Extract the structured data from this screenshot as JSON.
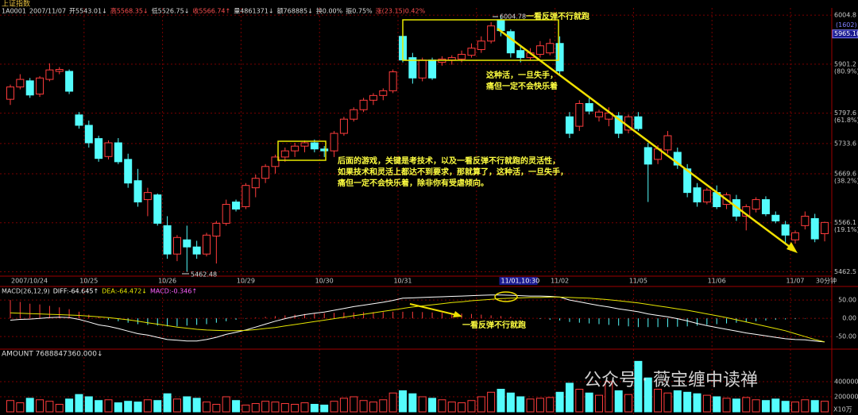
{
  "chart_data": {
    "type": "candlestick",
    "title": "上证指数",
    "header_items": [
      "1A0001",
      "2007/11/07",
      "开5543.01↓",
      "高5568.35↓",
      "低5526.75↓",
      "收5566.74↑",
      "量4861371↓",
      "额768885↓",
      "换0.00%",
      "振0.75%",
      "涨(23.15)0.42%"
    ],
    "candles": {
      "open": [
        5827,
        5853,
        5866,
        5838,
        5869,
        5886,
        5886,
        5794,
        5772,
        5744,
        5706,
        5735,
        5700,
        5655,
        5615,
        5625,
        5560,
        5500,
        5530,
        5515,
        5500,
        5538,
        5565,
        5610,
        5600,
        5640,
        5660,
        5685,
        5705,
        5718,
        5728,
        5735,
        5722,
        5718,
        5755,
        5785,
        5805,
        5825,
        5835,
        5845,
        5960,
        5915,
        5872,
        5910,
        5905,
        5910,
        5912,
        5920,
        5932,
        5950,
        5995,
        5970,
        5930,
        5915,
        5922,
        5925,
        5945,
        5790,
        5770,
        5818,
        5790,
        5785,
        5792,
        5762,
        5790,
        5725,
        5700,
        5720,
        5715,
        5680,
        5640,
        5610,
        5630,
        5605,
        5615,
        5580,
        5595,
        5615,
        5582,
        5562,
        5530,
        5560,
        5575,
        5543.01
      ],
      "high": [
        5858,
        5880,
        5872,
        5876,
        5903,
        5895,
        5890,
        5800,
        5782,
        5750,
        5740,
        5745,
        5712,
        5680,
        5640,
        5628,
        5580,
        5540,
        5560,
        5528,
        5545,
        5570,
        5615,
        5615,
        5650,
        5668,
        5690,
        5710,
        5725,
        5735,
        5740,
        5742,
        5728,
        5760,
        5790,
        5810,
        5830,
        5840,
        5850,
        5890,
        5968,
        5925,
        5915,
        5915,
        5918,
        5920,
        5930,
        5945,
        5960,
        5990,
        6004.78,
        5975,
        5940,
        5935,
        5950,
        5955,
        5960,
        5800,
        5825,
        5830,
        5805,
        5810,
        5800,
        5795,
        5800,
        5735,
        5730,
        5760,
        5725,
        5690,
        5650,
        5640,
        5645,
        5630,
        5625,
        5605,
        5620,
        5622,
        5590,
        5570,
        5550,
        5590,
        5585,
        5568.35
      ],
      "low": [
        5815,
        5848,
        5830,
        5832,
        5865,
        5880,
        5838,
        5765,
        5725,
        5695,
        5700,
        5690,
        5640,
        5600,
        5580,
        5560,
        5490,
        5485,
        5462.48,
        5490,
        5495,
        5480,
        5560,
        5590,
        5595,
        5620,
        5650,
        5670,
        5695,
        5705,
        5715,
        5715,
        5705,
        5705,
        5750,
        5780,
        5800,
        5815,
        5825,
        5840,
        5905,
        5860,
        5865,
        5868,
        5898,
        5900,
        5905,
        5915,
        5925,
        5945,
        5960,
        5915,
        5905,
        5910,
        5915,
        5920,
        5880,
        5745,
        5760,
        5795,
        5780,
        5770,
        5745,
        5755,
        5760,
        5610,
        5690,
        5712,
        5680,
        5620,
        5600,
        5605,
        5595,
        5595,
        5570,
        5550,
        5588,
        5580,
        5565,
        5520,
        5522,
        5552,
        5525,
        5526.75
      ],
      "close": [
        5853,
        5869,
        5836,
        5872,
        5889,
        5890,
        5844,
        5772,
        5735,
        5702,
        5735,
        5695,
        5650,
        5610,
        5630,
        5565,
        5500,
        5535,
        5515,
        5500,
        5540,
        5565,
        5605,
        5595,
        5645,
        5660,
        5685,
        5705,
        5718,
        5728,
        5735,
        5722,
        5718,
        5755,
        5785,
        5805,
        5825,
        5835,
        5845,
        5885,
        5910,
        5872,
        5910,
        5872,
        5912,
        5915,
        5922,
        5935,
        5950,
        5982,
        5972,
        5925,
        5915,
        5925,
        5940,
        5945,
        5887,
        5755,
        5818,
        5802,
        5800,
        5798,
        5755,
        5790,
        5765,
        5690,
        5722,
        5750,
        5688,
        5630,
        5610,
        5635,
        5600,
        5625,
        5580,
        5600,
        5615,
        5585,
        5570,
        5540,
        5545,
        5580,
        5532,
        5566.74
      ]
    },
    "ylim": [
      5455,
      6020
    ],
    "yticks": [
      6004.8,
      5901.2,
      5797.6,
      5733.6,
      5669.6,
      5566.1,
      5462.5
    ],
    "fib_labels": [
      "(80.9%)",
      "(61.8%)",
      "(38.2%)",
      "(19.1%)"
    ],
    "cursor_count": "(1602)",
    "cursor_price": {
      "value": 5965.1,
      "label": "5965.10"
    },
    "x_labels": [
      "2007/10/24",
      "10/25",
      "10/26",
      "10/29",
      "10/30",
      "10/31",
      "11/01,10:30",
      "11/02",
      "11/05",
      "11/06",
      "11/07"
    ],
    "x_unit": "30分钟",
    "high_label": "6004.78",
    "low_label": "5462.48",
    "annotations": [
      "一看反弹不行就跑",
      "这种活，一旦失手，",
      "痛但一定不会快乐着",
      "后面的游戏，关键是考技术，以及一看反弹不行就跑的灵活性，",
      "如果技术和灵活上都达不到要求，那就算了，这种活，一旦失手，",
      "痛但一定不会快乐着，除非你有受虐倾向。"
    ],
    "macd": {
      "labels": [
        "MACD(26,12,9)",
        "DIFF:-64.645↑",
        "DEA:-64.472↓",
        "MACD:-0.346↑"
      ],
      "diff": [
        -5,
        -3,
        -2,
        0,
        2,
        3,
        2,
        -3,
        -10,
        -18,
        -22,
        -28,
        -35,
        -42,
        -46,
        -52,
        -58,
        -60,
        -62,
        -62,
        -58,
        -52,
        -44,
        -38,
        -32,
        -24,
        -16,
        -8,
        -1,
        5,
        10,
        14,
        17,
        22,
        27,
        32,
        36,
        40,
        44,
        49,
        55,
        56,
        57,
        58,
        59,
        60,
        61,
        62,
        63,
        64,
        64,
        63,
        62,
        61,
        61,
        60,
        58,
        50,
        45,
        40,
        35,
        31,
        26,
        22,
        18,
        12,
        8,
        4,
        -1,
        -7,
        -14,
        -20,
        -25,
        -30,
        -35,
        -40,
        -44,
        -48,
        -52,
        -56,
        -58,
        -59,
        -62,
        -64.645
      ],
      "dea": [
        15,
        14,
        13,
        12,
        11,
        10,
        9,
        8,
        6,
        4,
        2,
        -1,
        -4,
        -8,
        -12,
        -16,
        -20,
        -24,
        -27,
        -30,
        -32,
        -33,
        -34,
        -34,
        -33,
        -31,
        -28,
        -25,
        -21,
        -17,
        -13,
        -9,
        -5,
        -1,
        3,
        7,
        11,
        15,
        19,
        23,
        27,
        31,
        34,
        37,
        40,
        43,
        45,
        48,
        50,
        52,
        54,
        55,
        56,
        57,
        57,
        58,
        58,
        57,
        56,
        55,
        53,
        51,
        48,
        45,
        42,
        38,
        34,
        30,
        26,
        22,
        17,
        12,
        7,
        2,
        -4,
        -10,
        -16,
        -22,
        -28,
        -34,
        -42,
        -50,
        -58,
        -64.472
      ],
      "hist": [
        50,
        45,
        40,
        38,
        34,
        30,
        25,
        18,
        10,
        4,
        -4,
        -8,
        -12,
        -16,
        -18,
        -20,
        -22,
        -22,
        -20,
        -18,
        -16,
        -12,
        -8,
        -4,
        -1,
        2,
        4,
        6,
        8,
        10,
        12,
        13,
        14,
        15,
        16,
        16,
        17,
        17,
        17,
        18,
        18,
        18,
        17,
        16,
        15,
        14,
        13,
        12,
        10,
        8,
        6,
        4,
        2,
        0,
        -2,
        -4,
        -6,
        -10,
        -12,
        -14,
        -16,
        -18,
        -20,
        -22,
        -24,
        -24,
        -24,
        -24,
        -23,
        -22,
        -20,
        -18,
        -16,
        -14,
        -12,
        -10,
        -8,
        -6,
        -4,
        -3,
        -2,
        -1,
        -0.5,
        -0.346
      ],
      "ylim": [
        -80,
        85
      ],
      "yticks": [
        {
          "value": 50,
          "label": "50.00"
        },
        {
          "value": 0,
          "label": "0.00"
        },
        {
          "value": -50,
          "label": "-50.00"
        }
      ],
      "annotation": "一看反弹不行就跑"
    },
    "volume": {
      "label": "AMOUNT 7688847360.000↓",
      "values": [
        150000,
        120000,
        180000,
        160000,
        140000,
        100000,
        170000,
        230000,
        200000,
        150000,
        160000,
        120000,
        140000,
        130000,
        160000,
        150000,
        240000,
        170000,
        200000,
        180000,
        130000,
        100000,
        200000,
        150000,
        90000,
        110000,
        140000,
        130000,
        110000,
        100000,
        120000,
        100000,
        90000,
        140000,
        180000,
        200000,
        150000,
        130000,
        160000,
        250000,
        280000,
        240000,
        200000,
        180000,
        160000,
        130000,
        120000,
        150000,
        200000,
        260000,
        300000,
        250000,
        200000,
        170000,
        180000,
        190000,
        260000,
        380000,
        300000,
        250000,
        220000,
        400000,
        280000,
        230000,
        670000,
        450000,
        300000,
        250000,
        280000,
        260000,
        240000,
        220000,
        200000,
        180000,
        170000,
        190000,
        160000,
        150000,
        170000,
        140000,
        130000,
        160000,
        150000,
        140000
      ],
      "ylim": [
        0,
        800000
      ],
      "yticks": [
        400000,
        200000
      ],
      "unit": "X10万"
    },
    "watermark": "公众号 · 薇宝缠中读禅",
    "colors": {
      "up": "#ff3c3c",
      "down": "#54fcfc",
      "diff": "#ffffff",
      "dea": "#e6e600"
    }
  }
}
